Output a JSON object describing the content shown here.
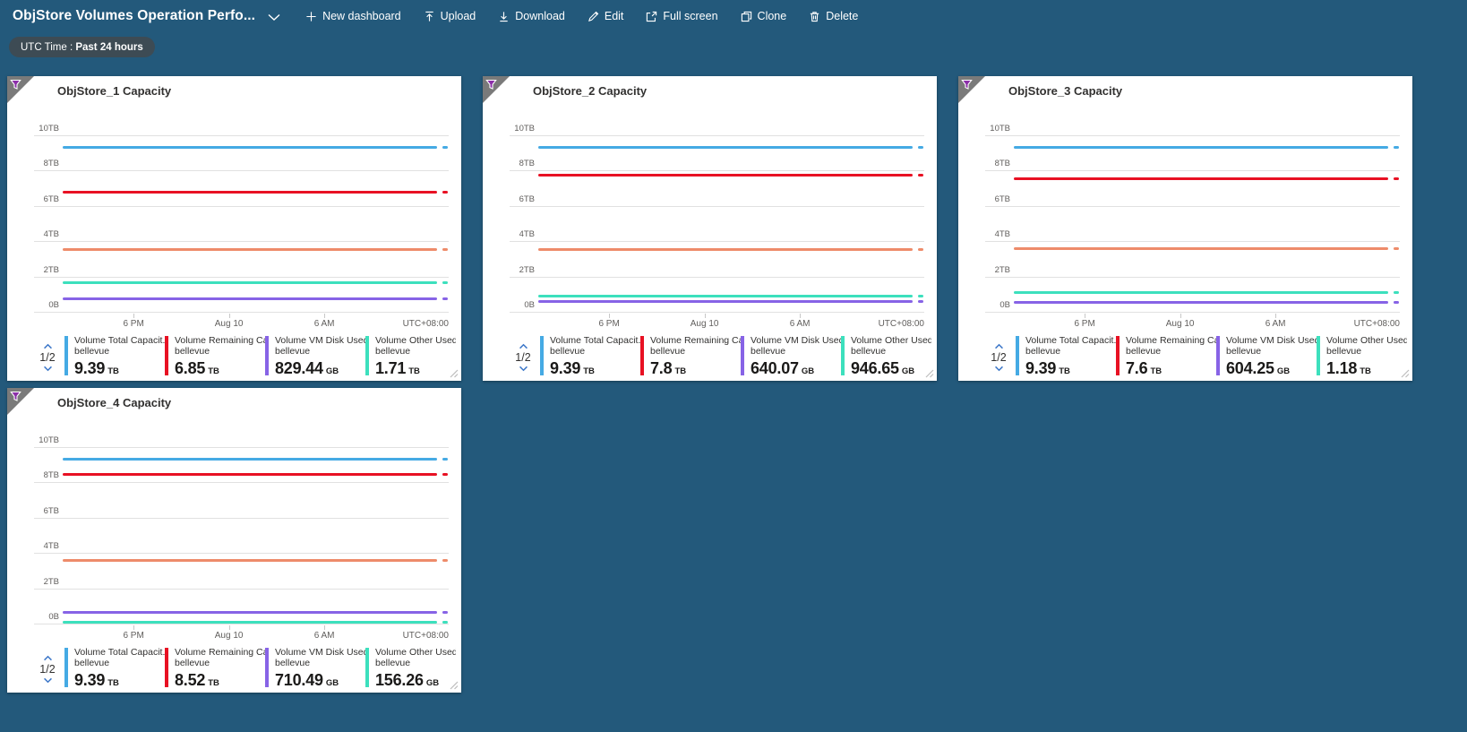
{
  "header": {
    "title": "ObjStore Volumes Operation Perfo...",
    "toolbar": [
      {
        "icon": "plus",
        "label": "New dashboard"
      },
      {
        "icon": "upload",
        "label": "Upload"
      },
      {
        "icon": "download",
        "label": "Download"
      },
      {
        "icon": "edit",
        "label": "Edit"
      },
      {
        "icon": "fullscreen",
        "label": "Full screen"
      },
      {
        "icon": "clone",
        "label": "Clone"
      },
      {
        "icon": "delete",
        "label": "Delete"
      }
    ],
    "time_filter_prefix": "UTC Time : ",
    "time_filter_value": "Past 24 hours"
  },
  "legend_pagination": "1/2",
  "ui_colors": {
    "page_background": "#23597b",
    "pill_background": "#3d4b54",
    "tile_background": "#ffffff",
    "corner_gray": "#7a7a7a",
    "filter_purple": "#8b2fa8",
    "pagination_blue": "#3b76c8",
    "axis_text": "#605e5c",
    "gridline": "#e1e1e1"
  },
  "chart_data": [
    {
      "type": "line",
      "title": "ObjStore_1 Capacity",
      "y_ticks": [
        "10TB",
        "8TB",
        "6TB",
        "4TB",
        "2TB",
        "0B"
      ],
      "ylim_tb": [
        0,
        10
      ],
      "x_ticks": [
        "6 PM",
        "Aug 10",
        "6 AM"
      ],
      "x_tick_positions_pct": [
        24,
        47,
        70
      ],
      "x_right_label": "UTC+08:00",
      "grid": "horizontal",
      "legend_position": "bottom",
      "series": [
        {
          "name": "Volume Total Capacit...",
          "resource": "bellevue",
          "color": "#45aae4",
          "value_tb": 9.39,
          "display": "9.39",
          "unit": "TB",
          "in_visible_legend": true
        },
        {
          "name": "Volume Remaining Cap...",
          "resource": "bellevue",
          "color": "#e81123",
          "value_tb": 6.85,
          "display": "6.85",
          "unit": "TB",
          "in_visible_legend": true
        },
        {
          "name": "Volume VM Disk Used ...",
          "resource": "bellevue",
          "color": "#8763e6",
          "value_tb": 0.83,
          "display": "829.44",
          "unit": "GB",
          "in_visible_legend": true
        },
        {
          "name": "Volume Other Used Ca...",
          "resource": "bellevue",
          "color": "#3ce0bd",
          "value_tb": 1.71,
          "display": "1.71",
          "unit": "TB",
          "in_visible_legend": true
        },
        {
          "name": "",
          "resource": "",
          "color": "#ee8b6a",
          "value_tb": 3.6,
          "display": "",
          "unit": "",
          "in_visible_legend": false
        }
      ]
    },
    {
      "type": "line",
      "title": "ObjStore_2 Capacity",
      "y_ticks": [
        "10TB",
        "8TB",
        "6TB",
        "4TB",
        "2TB",
        "0B"
      ],
      "ylim_tb": [
        0,
        10
      ],
      "x_ticks": [
        "6 PM",
        "Aug 10",
        "6 AM"
      ],
      "x_tick_positions_pct": [
        24,
        47,
        70
      ],
      "x_right_label": "UTC+08:00",
      "grid": "horizontal",
      "legend_position": "bottom",
      "series": [
        {
          "name": "Volume Total Capacit...",
          "resource": "bellevue",
          "color": "#45aae4",
          "value_tb": 9.39,
          "display": "9.39",
          "unit": "TB",
          "in_visible_legend": true
        },
        {
          "name": "Volume Remaining Cap...",
          "resource": "bellevue",
          "color": "#e81123",
          "value_tb": 7.8,
          "display": "7.8",
          "unit": "TB",
          "in_visible_legend": true
        },
        {
          "name": "Volume VM Disk Used ...",
          "resource": "bellevue",
          "color": "#8763e6",
          "value_tb": 0.64,
          "display": "640.07",
          "unit": "GB",
          "in_visible_legend": true
        },
        {
          "name": "Volume Other Used Ca...",
          "resource": "bellevue",
          "color": "#3ce0bd",
          "value_tb": 0.95,
          "display": "946.65",
          "unit": "GB",
          "in_visible_legend": true
        },
        {
          "name": "",
          "resource": "",
          "color": "#ee8b6a",
          "value_tb": 3.6,
          "display": "",
          "unit": "",
          "in_visible_legend": false
        }
      ]
    },
    {
      "type": "line",
      "title": "ObjStore_3 Capacity",
      "y_ticks": [
        "10TB",
        "8TB",
        "6TB",
        "4TB",
        "2TB",
        "0B"
      ],
      "ylim_tb": [
        0,
        10
      ],
      "x_ticks": [
        "6 PM",
        "Aug 10",
        "6 AM"
      ],
      "x_tick_positions_pct": [
        24,
        47,
        70
      ],
      "x_right_label": "UTC+08:00",
      "grid": "horizontal",
      "legend_position": "bottom",
      "series": [
        {
          "name": "Volume Total Capacit...",
          "resource": "bellevue",
          "color": "#45aae4",
          "value_tb": 9.39,
          "display": "9.39",
          "unit": "TB",
          "in_visible_legend": true
        },
        {
          "name": "Volume Remaining Cap...",
          "resource": "bellevue",
          "color": "#e81123",
          "value_tb": 7.6,
          "display": "7.6",
          "unit": "TB",
          "in_visible_legend": true
        },
        {
          "name": "Volume VM Disk Used ...",
          "resource": "bellevue",
          "color": "#8763e6",
          "value_tb": 0.6,
          "display": "604.25",
          "unit": "GB",
          "in_visible_legend": true
        },
        {
          "name": "Volume Other Used Ca...",
          "resource": "bellevue",
          "color": "#3ce0bd",
          "value_tb": 1.18,
          "display": "1.18",
          "unit": "TB",
          "in_visible_legend": true
        },
        {
          "name": "",
          "resource": "",
          "color": "#ee8b6a",
          "value_tb": 3.65,
          "display": "",
          "unit": "",
          "in_visible_legend": false
        }
      ]
    },
    {
      "type": "line",
      "title": "ObjStore_4 Capacity",
      "y_ticks": [
        "10TB",
        "8TB",
        "6TB",
        "4TB",
        "2TB",
        "0B"
      ],
      "ylim_tb": [
        0,
        10
      ],
      "x_ticks": [
        "6 PM",
        "Aug 10",
        "6 AM"
      ],
      "x_tick_positions_pct": [
        24,
        47,
        70
      ],
      "x_right_label": "UTC+08:00",
      "grid": "horizontal",
      "legend_position": "bottom",
      "series": [
        {
          "name": "Volume Total Capacit...",
          "resource": "bellevue",
          "color": "#45aae4",
          "value_tb": 9.39,
          "display": "9.39",
          "unit": "TB",
          "in_visible_legend": true
        },
        {
          "name": "Volume Remaining Cap...",
          "resource": "bellevue",
          "color": "#e81123",
          "value_tb": 8.52,
          "display": "8.52",
          "unit": "TB",
          "in_visible_legend": true
        },
        {
          "name": "Volume VM Disk Used ...",
          "resource": "bellevue",
          "color": "#8763e6",
          "value_tb": 0.71,
          "display": "710.49",
          "unit": "GB",
          "in_visible_legend": true
        },
        {
          "name": "Volume Other Used Ca...",
          "resource": "bellevue",
          "color": "#3ce0bd",
          "value_tb": 0.156,
          "display": "156.26",
          "unit": "GB",
          "in_visible_legend": true
        },
        {
          "name": "",
          "resource": "",
          "color": "#ee8b6a",
          "value_tb": 3.65,
          "display": "",
          "unit": "",
          "in_visible_legend": false
        }
      ]
    }
  ]
}
